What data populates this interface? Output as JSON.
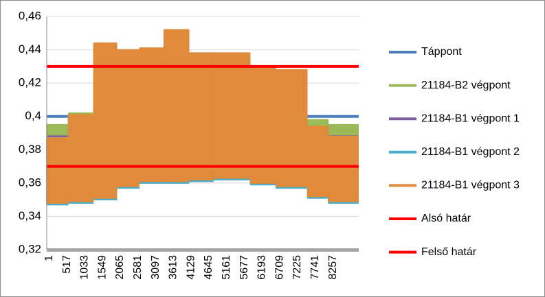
{
  "chart_data": {
    "type": "line",
    "title": "",
    "xlabel": "",
    "ylabel": "",
    "ylim": [
      0.32,
      0.46
    ],
    "yticks": [
      "0,32",
      "0,34",
      "0,36",
      "0,38",
      "0,4",
      "0,42",
      "0,44",
      "0,46"
    ],
    "xticks": [
      "1",
      "517",
      "1033",
      "1549",
      "2065",
      "2581",
      "3097",
      "3613",
      "4129",
      "4645",
      "5161",
      "5677",
      "6193",
      "6709",
      "7225",
      "7741",
      "8257"
    ],
    "xlim": [
      1,
      8640
    ],
    "grid": "horizontal",
    "legend_position": "right",
    "series": [
      {
        "name": "Táppont",
        "color": "#4a7ebb",
        "kind": "constant",
        "value": 0.4
      },
      {
        "name": "21184-B2 végpont",
        "color": "#9bbb59",
        "kind": "band",
        "segments": [
          {
            "x0": 1,
            "x1": 600,
            "low": 0.388,
            "high": 0.395
          },
          {
            "x0": 600,
            "x1": 1300,
            "low": 0.392,
            "high": 0.402
          },
          {
            "x0": 7220,
            "x1": 7800,
            "low": 0.392,
            "high": 0.398
          },
          {
            "x0": 7800,
            "x1": 8640,
            "low": 0.388,
            "high": 0.395
          }
        ]
      },
      {
        "name": "21184-B1 végpont 1",
        "color": "#7f5fa0",
        "kind": "constant_segments",
        "segments": [
          {
            "x0": 1,
            "x1": 600,
            "value": 0.388
          },
          {
            "x0": 7800,
            "x1": 8640,
            "value": 0.388
          }
        ]
      },
      {
        "name": "21184-B1 végpont 2",
        "color": "#4bacc6",
        "kind": "band",
        "segments": [
          {
            "x0": 1,
            "x1": 600,
            "low": 0.347,
            "high": 0.387
          },
          {
            "x0": 600,
            "x1": 1300,
            "low": 0.348,
            "high": 0.4
          },
          {
            "x0": 1300,
            "x1": 1950,
            "low": 0.35,
            "high": 0.443
          },
          {
            "x0": 1950,
            "x1": 2570,
            "low": 0.357,
            "high": 0.439
          },
          {
            "x0": 2570,
            "x1": 3250,
            "low": 0.36,
            "high": 0.44
          },
          {
            "x0": 3250,
            "x1": 3950,
            "low": 0.36,
            "high": 0.451
          },
          {
            "x0": 3950,
            "x1": 4620,
            "low": 0.361,
            "high": 0.438
          },
          {
            "x0": 4620,
            "x1": 5640,
            "low": 0.362,
            "high": 0.437
          },
          {
            "x0": 5640,
            "x1": 6350,
            "low": 0.359,
            "high": 0.43
          },
          {
            "x0": 6350,
            "x1": 6950,
            "low": 0.357,
            "high": 0.427
          },
          {
            "x0": 6950,
            "x1": 7220,
            "low": 0.357,
            "high": 0.427
          },
          {
            "x0": 7220,
            "x1": 7800,
            "low": 0.351,
            "high": 0.393
          },
          {
            "x0": 7800,
            "x1": 8640,
            "low": 0.348,
            "high": 0.387
          }
        ]
      },
      {
        "name": "21184-B1 végpont 3",
        "color": "#e08a3c",
        "kind": "band",
        "segments": [
          {
            "x0": 1,
            "x1": 600,
            "low": 0.348,
            "high": 0.387
          },
          {
            "x0": 600,
            "x1": 1300,
            "low": 0.349,
            "high": 0.401
          },
          {
            "x0": 1300,
            "x1": 1950,
            "low": 0.351,
            "high": 0.444
          },
          {
            "x0": 1950,
            "x1": 2570,
            "low": 0.358,
            "high": 0.44
          },
          {
            "x0": 2570,
            "x1": 3250,
            "low": 0.361,
            "high": 0.441
          },
          {
            "x0": 3250,
            "x1": 3950,
            "low": 0.361,
            "high": 0.452
          },
          {
            "x0": 3950,
            "x1": 4620,
            "low": 0.362,
            "high": 0.438
          },
          {
            "x0": 4620,
            "x1": 5640,
            "low": 0.363,
            "high": 0.438
          },
          {
            "x0": 5640,
            "x1": 6350,
            "low": 0.36,
            "high": 0.43
          },
          {
            "x0": 6350,
            "x1": 7220,
            "low": 0.358,
            "high": 0.428
          },
          {
            "x0": 7220,
            "x1": 7800,
            "low": 0.352,
            "high": 0.394
          },
          {
            "x0": 7800,
            "x1": 8640,
            "low": 0.349,
            "high": 0.388
          }
        ]
      },
      {
        "name": "Alsó határ",
        "color": "#ff0000",
        "kind": "constant",
        "value": 0.43
      },
      {
        "name": "Felső határ",
        "color": "#ff0000",
        "kind": "constant",
        "value": 0.37
      }
    ]
  }
}
